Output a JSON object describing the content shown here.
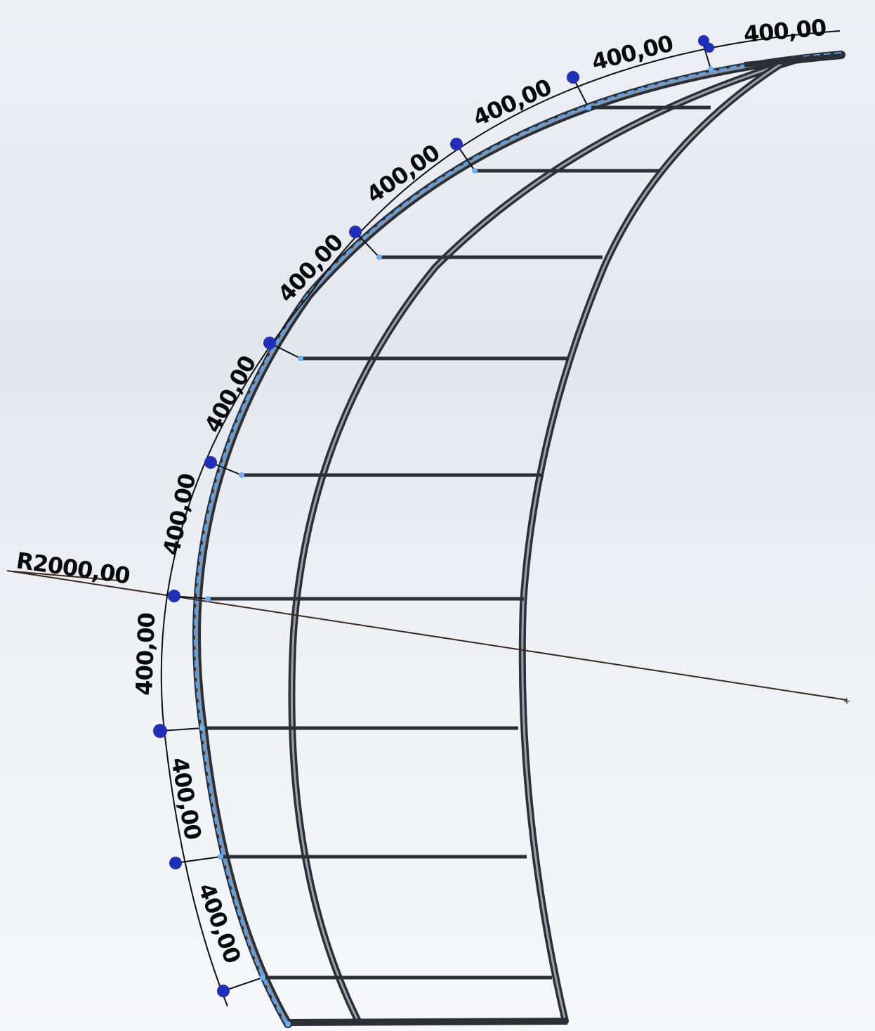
{
  "drawing": {
    "radius_label": "R2000,00",
    "dimensions": [
      {
        "id": "arc-1",
        "label": "400,00"
      },
      {
        "id": "arc-2",
        "label": "400,00"
      },
      {
        "id": "arc-3",
        "label": "400,00"
      },
      {
        "id": "arc-4",
        "label": "400,00"
      },
      {
        "id": "arc-5",
        "label": "400,00"
      },
      {
        "id": "arc-6",
        "label": "400,00"
      },
      {
        "id": "arc-7",
        "label": "400,00"
      },
      {
        "id": "arc-8",
        "label": "400,00"
      },
      {
        "id": "arc-9",
        "label": "400,00"
      },
      {
        "id": "arc-10",
        "label": "400,00"
      }
    ],
    "colors": {
      "frame": "#2b2f36",
      "frame_highlight": "#8c939c",
      "selected_edge": "#5aa0e8",
      "dimension_line": "#111111",
      "handle": "#1f2fb8",
      "radius_line": "#3a2a20"
    }
  }
}
